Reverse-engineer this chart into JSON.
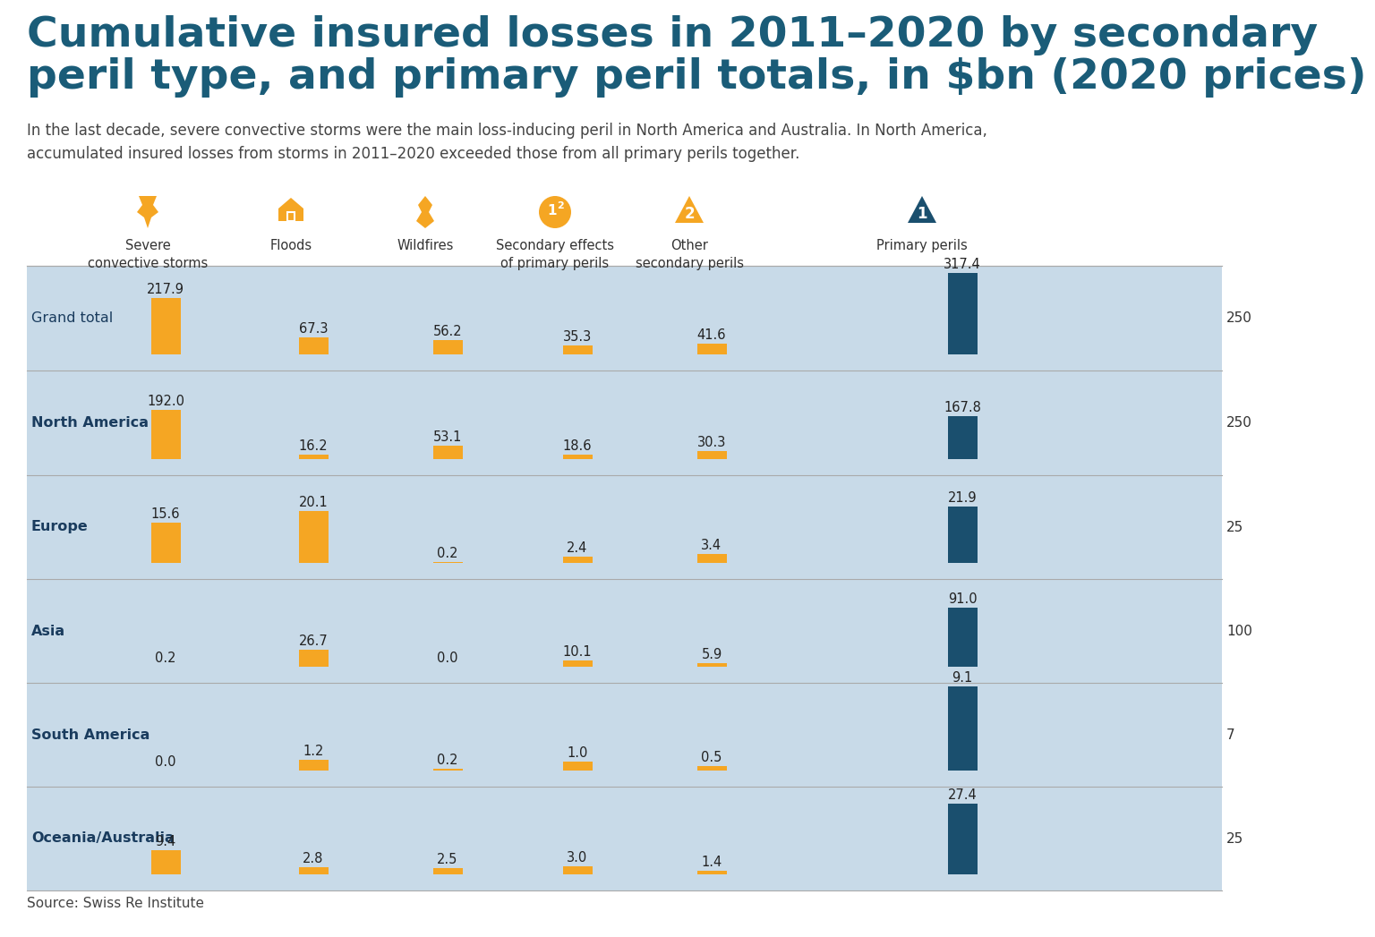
{
  "title_line1": "Cumulative insured losses in 2011–2020 by secondary",
  "title_line2": "peril type, and primary peril totals, in $bn (2020 prices)",
  "subtitle": "In the last decade, severe convective storms were the main loss-inducing peril in North America and Australia. In North America,\naccumulated insured losses from storms in 2011–2020 exceeded those from all primary perils together.",
  "source": "Source: Swiss Re Institute",
  "title_color": "#1a5c78",
  "subtitle_color": "#444444",
  "background_color": "#ffffff",
  "bar_color_secondary": "#F5A623",
  "bar_color_primary": "#1a4f6e",
  "region_label_color": "#1a3c5e",
  "regions": [
    "Grand total",
    "North America",
    "Europe",
    "Asia",
    "South America",
    "Oceania/Australia"
  ],
  "data": {
    "Grand total": {
      "storms": 217.9,
      "floods": 67.3,
      "wildfires": 56.2,
      "secondary_effects": 35.3,
      "other_secondary": 41.6,
      "primary": 317.4
    },
    "North America": {
      "storms": 192.0,
      "floods": 16.2,
      "wildfires": 53.1,
      "secondary_effects": 18.6,
      "other_secondary": 30.3,
      "primary": 167.8
    },
    "Europe": {
      "storms": 15.6,
      "floods": 20.1,
      "wildfires": 0.2,
      "secondary_effects": 2.4,
      "other_secondary": 3.4,
      "primary": 21.9
    },
    "Asia": {
      "storms": 0.2,
      "floods": 26.7,
      "wildfires": 0.0,
      "secondary_effects": 10.1,
      "other_secondary": 5.9,
      "primary": 91.0
    },
    "South America": {
      "storms": 0.0,
      "floods": 1.2,
      "wildfires": 0.2,
      "secondary_effects": 1.0,
      "other_secondary": 0.5,
      "primary": 9.1
    },
    "Oceania/Australia": {
      "storms": 9.4,
      "floods": 2.8,
      "wildfires": 2.5,
      "secondary_effects": 3.0,
      "other_secondary": 1.4,
      "primary": 27.4
    }
  },
  "secondary_scale": {
    "Grand total": 250,
    "North America": 250,
    "Europe": 25,
    "Asia": 100,
    "South America": 7,
    "Oceania/Australia": 25
  },
  "primary_scale_label": {
    "Grand total": 250,
    "North America": 250,
    "Europe": 25,
    "Asia": 100,
    "South America": 7,
    "Oceania/Australia": 25
  },
  "legend_labels": [
    "Severe\nconvective storms",
    "Floods",
    "Wildfires",
    "Secondary effects\nof primary perils",
    "Other\nsecondary perils",
    "Primary perils"
  ],
  "legend_colors": [
    "#F5A623",
    "#F5A623",
    "#F5A623",
    "#F5A623",
    "#F5A623",
    "#1a4f6e"
  ]
}
